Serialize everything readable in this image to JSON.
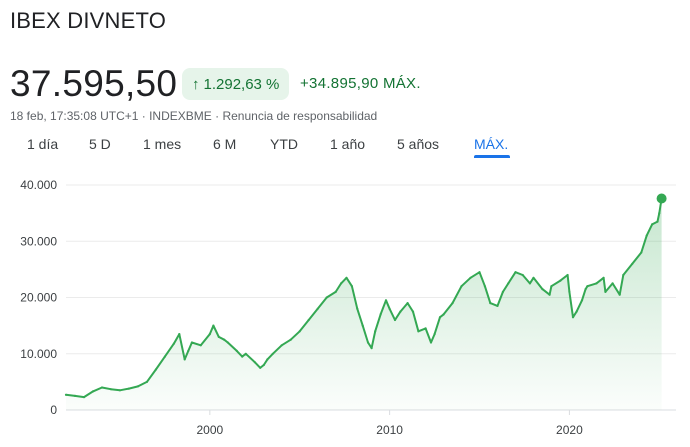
{
  "header": {
    "title": "IBEX DIVNETO",
    "price": "37.595,50",
    "change_percent": "1.292,63 %",
    "change_absolute": "+34.895,90 MÁX.",
    "timestamp": "18 feb, 17:35:08 UTC+1",
    "separator": " · ",
    "exchange": "INDEXBME",
    "disclaimer": "Renuncia de responsabilidad"
  },
  "colors": {
    "up": "#137333",
    "line": "#34a853",
    "accent": "#1a73e8",
    "pill_bg": "#e6f4ea"
  },
  "range_tabs": [
    {
      "label": "1 día",
      "active": false
    },
    {
      "label": "5 D",
      "active": false
    },
    {
      "label": "1 mes",
      "active": false
    },
    {
      "label": "6 M",
      "active": false
    },
    {
      "label": "YTD",
      "active": false
    },
    {
      "label": "1 año",
      "active": false
    },
    {
      "label": "5 años",
      "active": false
    },
    {
      "label": "MÁX.",
      "active": true
    }
  ],
  "chart_data": {
    "type": "area",
    "title": "",
    "xlabel": "",
    "ylabel": "",
    "xlim": [
      1992,
      2025.15
    ],
    "ylim": [
      0,
      40000
    ],
    "y_ticks": [
      {
        "value": 0,
        "label": "0"
      },
      {
        "value": 10000,
        "label": "10.000"
      },
      {
        "value": 20000,
        "label": "20.000"
      },
      {
        "value": 30000,
        "label": "30.000"
      },
      {
        "value": 40000,
        "label": "40.000"
      }
    ],
    "x_ticks": [
      {
        "value": 2000,
        "label": "2000"
      },
      {
        "value": 2010,
        "label": "2010"
      },
      {
        "value": 2020,
        "label": "2020"
      }
    ],
    "grid": "horizontal",
    "last_point": {
      "x": 2025.13,
      "y": 37595.5
    },
    "series": [
      {
        "x": [
          1992.0,
          1992.5,
          1993.0,
          1993.5,
          1994.0,
          1994.5,
          1995.0,
          1995.5,
          1996.0,
          1996.5,
          1997.0,
          1997.5,
          1998.0,
          1998.3,
          1998.6,
          1998.8,
          1999.0,
          1999.5,
          2000.0,
          2000.2,
          2000.5,
          2000.8,
          2001.0,
          2001.5,
          2001.8,
          2002.0,
          2002.5,
          2002.8,
          2003.0,
          2003.2,
          2003.5,
          2004.0,
          2004.5,
          2005.0,
          2005.5,
          2006.0,
          2006.5,
          2007.0,
          2007.3,
          2007.6,
          2007.9,
          2008.2,
          2008.5,
          2008.8,
          2009.0,
          2009.2,
          2009.5,
          2009.8,
          2010.0,
          2010.3,
          2010.6,
          2011.0,
          2011.3,
          2011.6,
          2012.0,
          2012.3,
          2012.5,
          2012.8,
          2013.0,
          2013.5,
          2014.0,
          2014.5,
          2015.0,
          2015.3,
          2015.6,
          2016.0,
          2016.3,
          2016.6,
          2017.0,
          2017.4,
          2017.8,
          2018.0,
          2018.5,
          2018.9,
          2019.0,
          2019.5,
          2019.9,
          2020.0,
          2020.2,
          2020.4,
          2020.7,
          2020.9,
          2021.0,
          2021.5,
          2021.9,
          2022.0,
          2022.4,
          2022.8,
          2023.0,
          2023.5,
          2024.0,
          2024.3,
          2024.6,
          2024.9,
          2025.0,
          2025.13
        ],
        "y": [
          2700,
          2500,
          2300,
          3300,
          4000,
          3700,
          3500,
          3800,
          4200,
          5000,
          7200,
          9500,
          11800,
          13500,
          9000,
          10500,
          12000,
          11500,
          13500,
          15000,
          13000,
          12500,
          12000,
          10500,
          9500,
          10000,
          8500,
          7500,
          8000,
          9000,
          10000,
          11500,
          12500,
          14000,
          16000,
          18000,
          20000,
          21000,
          22500,
          23500,
          22000,
          18000,
          15000,
          12000,
          11000,
          14000,
          17000,
          19500,
          18000,
          16000,
          17500,
          19000,
          17500,
          14000,
          14500,
          12000,
          13500,
          16500,
          17000,
          19000,
          22000,
          23500,
          24500,
          22000,
          19000,
          18500,
          21000,
          22500,
          24500,
          24000,
          22500,
          23500,
          21500,
          20500,
          22000,
          23000,
          24000,
          21000,
          16500,
          17500,
          19500,
          21500,
          22000,
          22500,
          23500,
          21000,
          22500,
          20500,
          24000,
          26000,
          28000,
          31000,
          33000,
          33500,
          35000,
          37595.5
        ]
      }
    ]
  }
}
